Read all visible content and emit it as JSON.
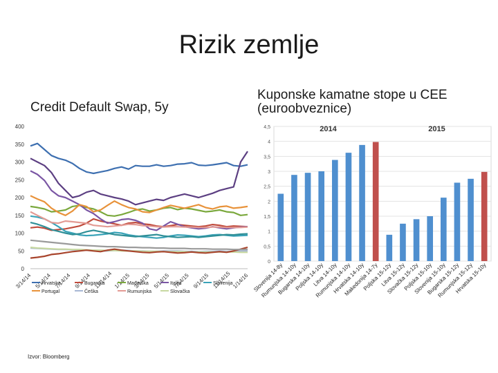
{
  "slide": {
    "title": "Rizik zemlje",
    "source": "Izvor: Bloomberg"
  },
  "chart_data": [
    {
      "type": "line",
      "title": "Credit Default Swap, 5y",
      "ylim": [
        0,
        400
      ],
      "yticks": [
        0,
        50,
        100,
        150,
        200,
        250,
        300,
        350,
        400
      ],
      "xtick_labels": [
        "3/14/14",
        "5/14/14",
        "7/14/14",
        "9/14/14",
        "11/14/14",
        "1/14/15",
        "3/14/15",
        "5/14/15",
        "7/14/15",
        "9/14/15",
        "11/14/15",
        "1/14/16"
      ],
      "grid": false,
      "legend_position": "bottom",
      "series": [
        {
          "name": "Hrvatska",
          "color": "#3d6fb0",
          "values": [
            345,
            352,
            335,
            318,
            310,
            305,
            296,
            282,
            272,
            268,
            272,
            276,
            282,
            286,
            280,
            290,
            288,
            288,
            292,
            288,
            290,
            294,
            295,
            298,
            291,
            290,
            292,
            295,
            298,
            290,
            288,
            292
          ]
        },
        {
          "name": "Bugarska",
          "color": "#c04a3b",
          "values": [
            115,
            117,
            114,
            108,
            110,
            112,
            116,
            120,
            128,
            140,
            134,
            130,
            126,
            122,
            128,
            130,
            126,
            124,
            120,
            118,
            121,
            124,
            122,
            120,
            118,
            120,
            124,
            122,
            118,
            120,
            119,
            118
          ]
        },
        {
          "name": "Mađarska",
          "color": "#7aa83c",
          "values": [
            175,
            172,
            168,
            160,
            162,
            165,
            175,
            178,
            172,
            168,
            160,
            150,
            148,
            152,
            158,
            165,
            168,
            162,
            165,
            170,
            172,
            166,
            170,
            168,
            164,
            160,
            162,
            165,
            160,
            158,
            150,
            152
          ]
        },
        {
          "name": "Italija",
          "color": "#7a56a4",
          "values": [
            275,
            265,
            248,
            220,
            205,
            200,
            190,
            180,
            165,
            155,
            140,
            128,
            132,
            138,
            140,
            136,
            128,
            112,
            108,
            120,
            132,
            125,
            118,
            115,
            112,
            114,
            118,
            115,
            112,
            115,
            117,
            118
          ]
        },
        {
          "name": "Slovenija",
          "color": "#3aa3b8",
          "values": [
            148,
            145,
            140,
            130,
            118,
            105,
            100,
            95,
            93,
            94,
            96,
            98,
            102,
            100,
            95,
            92,
            90,
            88,
            86,
            88,
            92,
            95,
            94,
            92,
            90,
            92,
            95,
            96,
            94,
            92,
            93,
            94
          ]
        },
        {
          "name": "Portugal",
          "color": "#e8923a",
          "values": [
            205,
            196,
            188,
            170,
            158,
            150,
            162,
            180,
            175,
            160,
            165,
            178,
            190,
            180,
            172,
            168,
            160,
            158,
            165,
            172,
            178,
            174,
            170,
            175,
            180,
            172,
            168,
            174,
            176,
            170,
            172,
            175
          ]
        },
        {
          "name": "Češka",
          "color": "#a7b7d4",
          "values": [
            58,
            57,
            56,
            55,
            54,
            54,
            53,
            52,
            52,
            51,
            50,
            50,
            51,
            52,
            51,
            50,
            50,
            49,
            49,
            50,
            50,
            50,
            49,
            49,
            48,
            49,
            49,
            50,
            49,
            49,
            50,
            50
          ]
        },
        {
          "name": "Rumunjska",
          "color": "#e39a93",
          "values": [
            160,
            150,
            140,
            130,
            128,
            134,
            132,
            130,
            128,
            122,
            120,
            118,
            120,
            122,
            125,
            124,
            121,
            120,
            118,
            117,
            118,
            118,
            117,
            117,
            116,
            116,
            117,
            117,
            116,
            116,
            116,
            117
          ]
        },
        {
          "name": "Slovačka",
          "color": "#c7d8a0",
          "values": [
            60,
            58,
            57,
            56,
            55,
            55,
            54,
            54,
            53,
            52,
            52,
            51,
            51,
            50,
            50,
            50,
            49,
            49,
            49,
            48,
            48,
            48,
            48,
            47,
            47,
            47,
            47,
            47,
            47,
            47,
            46,
            46
          ]
        },
        {
          "name": "",
          "color": "#5c3f82",
          "values": [
            310,
            300,
            290,
            270,
            240,
            220,
            200,
            205,
            215,
            220,
            210,
            205,
            200,
            196,
            190,
            180,
            185,
            190,
            195,
            192,
            200,
            205,
            210,
            205,
            200,
            206,
            212,
            220,
            225,
            230,
            300,
            330
          ]
        },
        {
          "name": "",
          "color": "#2f8f97",
          "values": [
            130,
            125,
            118,
            110,
            105,
            100,
            96,
            98,
            104,
            108,
            104,
            100,
            96,
            94,
            92,
            90,
            92,
            94,
            96,
            92,
            90,
            88,
            89,
            90,
            88,
            90,
            92,
            94,
            96,
            95,
            97,
            98
          ]
        },
        {
          "name": "",
          "color": "#a8442c",
          "values": [
            30,
            32,
            35,
            40,
            42,
            45,
            48,
            50,
            52,
            50,
            48,
            52,
            55,
            52,
            50,
            48,
            46,
            45,
            47,
            48,
            46,
            44,
            45,
            47,
            45,
            44,
            46,
            48,
            46,
            50,
            55,
            60
          ]
        },
        {
          "name": "",
          "color": "#9a9a9a",
          "values": [
            80,
            78,
            76,
            74,
            72,
            70,
            68,
            66,
            65,
            64,
            63,
            62,
            62,
            61,
            60,
            60,
            59,
            59,
            58,
            58,
            57,
            57,
            57,
            56,
            56,
            56,
            55,
            55,
            55,
            54,
            54,
            54
          ]
        }
      ]
    },
    {
      "type": "bar",
      "title": "Kuponske kamatne stope u CEE (euroobveznice)",
      "ylim": [
        0,
        4.5
      ],
      "yticks": [
        0,
        0.5,
        1,
        1.5,
        2,
        2.5,
        3,
        3.5,
        4,
        4.5
      ],
      "groups": [
        "2014",
        "2015"
      ],
      "categories": [
        "Slovenija 14-8y",
        "Rumunjska 14-10y",
        "Bugarska 14-10y",
        "Poljska 14-10y",
        "Litva 14-10y",
        "Rumunjska 14-10y",
        "Hrvatska 14-10y",
        "Makedonija 14-7y",
        "Poljska 15-12y",
        "Litva 15-12y",
        "Slovačka 15-12y",
        "Poljska 15-10y",
        "Slovenija 15-10y",
        "Bugarska 15-12y",
        "Rumunjska 15-12y",
        "Hrvatska 15-10y"
      ],
      "values": [
        2.25,
        2.88,
        2.95,
        3.0,
        3.38,
        3.62,
        3.88,
        3.98,
        0.88,
        1.25,
        1.4,
        1.5,
        2.12,
        2.62,
        2.75,
        2.98
      ],
      "highlight_color": "#c0504d",
      "bar_color": "#4f8fcf",
      "highlighted": [
        "Makedonija 14-7y",
        "Hrvatska 15-10y"
      ]
    }
  ]
}
